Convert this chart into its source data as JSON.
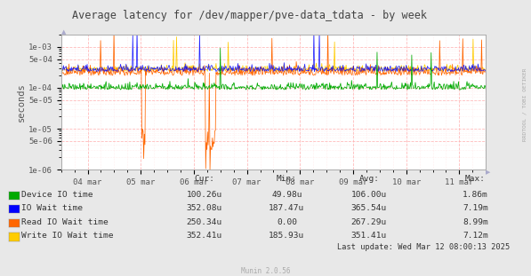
{
  "title": "Average latency for /dev/mapper/pve-data_tdata - by week",
  "ylabel": "seconds",
  "xlabel_ticks": [
    "04 mar",
    "05 mar",
    "06 mar",
    "07 mar",
    "08 mar",
    "09 mar",
    "10 mar",
    "11 mar"
  ],
  "bg_color": "#e8e8e8",
  "plot_bg_color": "#ffffff",
  "grid_color_major": "#ffaaaa",
  "title_color": "#444444",
  "series": [
    {
      "label": "Device IO time",
      "color": "#00aa00"
    },
    {
      "label": "IO Wait time",
      "color": "#0000ff"
    },
    {
      "label": "Read IO Wait time",
      "color": "#ff6600"
    },
    {
      "label": "Write IO Wait time",
      "color": "#ffcc00"
    }
  ],
  "legend_headers": [
    "Cur:",
    "Min:",
    "Avg:",
    "Max:"
  ],
  "legend_rows": [
    [
      "Device IO time",
      "100.26u",
      "49.98u",
      "106.00u",
      "1.86m"
    ],
    [
      "IO Wait time",
      "352.08u",
      "187.47u",
      "365.54u",
      "7.19m"
    ],
    [
      "Read IO Wait time",
      "250.34u",
      "0.00",
      "267.29u",
      "8.99m"
    ],
    [
      "Write IO Wait time",
      "352.41u",
      "185.93u",
      "351.41u",
      "7.12m"
    ]
  ],
  "last_update": "Last update: Wed Mar 12 08:00:13 2025",
  "rrdtool_label": "RRDTOOL / TOBI OETIKER",
  "munin_label": "Munin 2.0.56",
  "watermark_color": "#aaaaaa",
  "n_points": 700,
  "seed": 42,
  "ytick_vals": [
    1e-06,
    5e-06,
    1e-05,
    5e-05,
    0.0001,
    0.0005,
    0.001
  ],
  "ytick_labels": [
    "1e-06",
    "5e-06",
    "1e-05",
    "5e-05",
    "1e-04",
    "5e-04",
    "1e-03"
  ],
  "ymin": 1e-06,
  "ymax": 0.002
}
